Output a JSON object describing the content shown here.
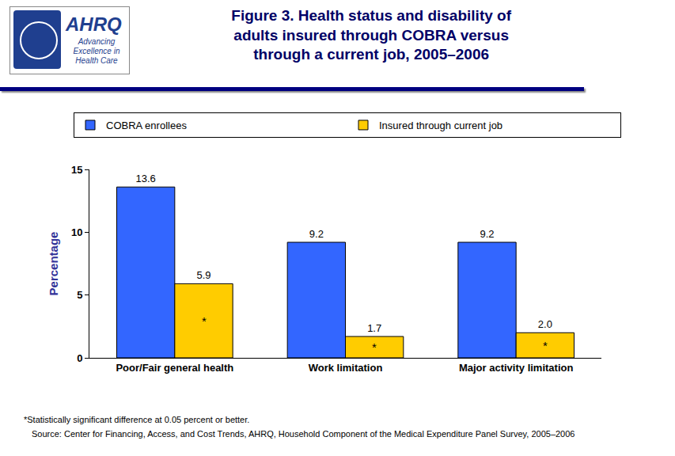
{
  "header": {
    "logo_text": "AHRQ",
    "logo_tagline": "Advancing Excellence in Health Care"
  },
  "chart_data": {
    "type": "bar",
    "title": "Figure 3. Health status and disability of\nadults insured through COBRA versus\nthrough a current job, 2005–2006",
    "categories": [
      "Poor/Fair general health",
      "Work limitation",
      "Major activity limitation"
    ],
    "series": [
      {
        "name": "COBRA enrollees",
        "color": "#3366ff",
        "values": [
          13.6,
          9.2,
          9.2
        ],
        "value_labels": [
          "13.6",
          "9.2",
          "9.2"
        ]
      },
      {
        "name": "Insured through current job",
        "color": "#ffcc00",
        "values": [
          5.9,
          1.7,
          2.0
        ],
        "value_labels": [
          "5.9",
          "1.7",
          "2.0"
        ],
        "significance": [
          "*",
          "*",
          "*"
        ]
      }
    ],
    "y_label": "Percentage",
    "ylim": [
      0,
      15
    ],
    "yticks": [
      0,
      5,
      10,
      15
    ],
    "grid": false,
    "data_labels": true,
    "legend": "top",
    "notes": [
      "*Statistically significant difference at 0.05 percent or better.",
      "Source: Center for Financing, Access, and Cost Trends, AHRQ, Household Component of the Medical Expenditure Panel Survey, 2005–2006"
    ]
  }
}
